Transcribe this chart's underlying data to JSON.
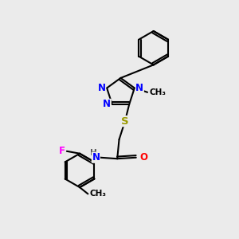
{
  "bg_color": "#ebebeb",
  "bond_color": "#000000",
  "bond_width": 1.5,
  "atom_colors": {
    "N": "#0000ff",
    "O": "#ff0000",
    "S": "#999900",
    "F": "#ff00ff",
    "C": "#000000",
    "H": "#555555"
  },
  "font_size": 8.5,
  "fig_size": [
    3.0,
    3.0
  ],
  "dpi": 100
}
